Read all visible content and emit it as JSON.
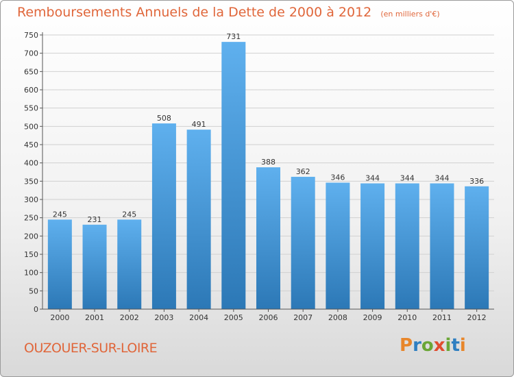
{
  "header": {
    "title": "Remboursements Annuels de la Dette de 2000 à 2012",
    "unit": "(en milliers d'€)"
  },
  "footer": {
    "city": "OUZOUER-SUR-LOIRE",
    "logo_text": "Proxiti",
    "logo_colors": [
      "#e8862a",
      "#2f7fc1",
      "#6aa636",
      "#e04c2e",
      "#6aa636",
      "#2f7fc1",
      "#e8862a"
    ]
  },
  "colors": {
    "bar_top": "#5fb0ee",
    "bar_bottom": "#2c78b6",
    "grid": "#d0d0d0",
    "axis": "#555555",
    "title": "#e0663a"
  },
  "chart_data": {
    "type": "bar",
    "title": "Remboursements Annuels de la Dette de 2000 à 2012",
    "subtitle": "(en milliers d'€)",
    "xlabel": "",
    "ylabel": "",
    "categories": [
      "2000",
      "2001",
      "2002",
      "2003",
      "2004",
      "2005",
      "2006",
      "2007",
      "2008",
      "2009",
      "2010",
      "2011",
      "2012"
    ],
    "values": [
      245,
      231,
      245,
      508,
      491,
      731,
      388,
      362,
      346,
      344,
      344,
      344,
      336
    ],
    "ylim": [
      0,
      750
    ],
    "yticks": [
      0,
      50,
      100,
      150,
      200,
      250,
      300,
      350,
      400,
      450,
      500,
      550,
      600,
      650,
      700,
      750
    ],
    "grid": true,
    "data_labels": true
  }
}
